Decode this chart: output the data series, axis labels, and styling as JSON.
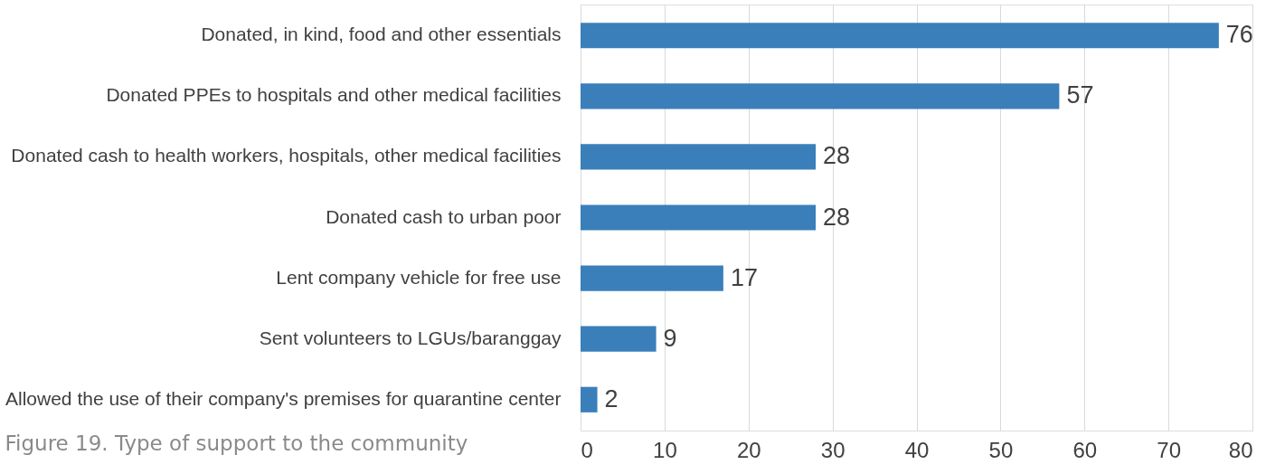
{
  "chart_data": {
    "type": "bar",
    "orientation": "horizontal",
    "categories": [
      "Donated, in kind, food and other essentials",
      "Donated PPEs to hospitals and other medical facilities",
      "Donated cash to health workers, hospitals, other medical facilities",
      "Donated cash to urban poor",
      "Lent company vehicle for free use",
      "Sent volunteers to LGUs/baranggay",
      "Allowed the use of their company's premises for quarantine center"
    ],
    "values": [
      76,
      57,
      28,
      28,
      17,
      9,
      2
    ],
    "color": "#3a7fba",
    "xlim": [
      0,
      80
    ],
    "xticks": [
      0,
      10,
      20,
      30,
      40,
      50,
      60,
      70,
      80
    ],
    "grid": "x",
    "data_labels": true,
    "annotations": [
      "Figure 19. Type of support to the community"
    ]
  }
}
